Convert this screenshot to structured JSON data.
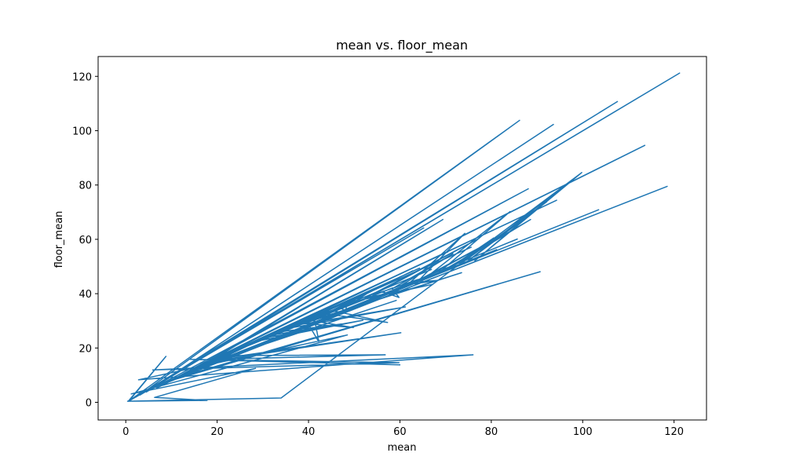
{
  "chart_data": {
    "type": "line",
    "title": "mean vs. floor_mean",
    "xlabel": "mean",
    "ylabel": "floor_mean",
    "xlim": [
      -6.05,
      127.1
    ],
    "ylim": [
      -6.5,
      127.3
    ],
    "xticks": [
      0,
      20,
      40,
      60,
      80,
      100,
      120
    ],
    "yticks": [
      0,
      20,
      40,
      60,
      80,
      100,
      120
    ],
    "grid": false,
    "series": [
      {
        "color": "#1f77b4",
        "x": [
          0.5,
          8.8,
          0.7,
          65.2,
          1.2,
          86.2,
          3.1,
          121.2,
          2.2,
          107.6,
          4.5,
          93.6,
          5.1,
          88.1,
          6.8,
          113.6,
          7.5,
          103.5,
          9.2,
          118.5,
          10.1,
          90.7,
          12.3,
          85.7,
          11.4,
          94.3,
          14.6,
          81.2,
          15.2,
          69.4,
          16.8,
          75.6,
          17.5,
          59.2,
          18.9,
          60.2,
          19.6,
          56.8,
          21.2,
          70.5,
          22.7,
          45.8,
          24.1,
          58.4,
          25.6,
          66.9,
          27.3,
          52.2,
          28.7,
          51.9,
          30.2,
          64.3,
          31.8,
          47.2,
          33.1,
          73.5,
          34.6,
          61.2,
          36.2,
          55.1,
          37.9,
          49.8,
          39.4,
          42.3,
          41.2,
          50.6,
          43.4,
          57.3,
          45.1,
          62.8,
          46.7,
          48.2,
          48.3,
          53.5,
          50.2,
          67.1,
          52.4,
          77.3,
          54.1,
          63.9,
          56.2,
          59.8,
          58.3,
          71.6,
          60.1,
          68.4,
          62.2,
          74.2,
          64.3,
          79.4,
          66.1,
          84.1,
          68.4,
          88.6,
          70.2,
          80.5,
          72.3,
          92.1,
          74.1,
          96.3,
          76.4,
          99.8,
          34.0,
          0.4,
          17.8,
          6.3,
          28.4,
          1.2,
          48.5,
          2.8,
          76.0,
          5.9,
          59.8,
          14.1,
          60.1
        ],
        "y": [
          0.3,
          16.9,
          0.5,
          64.2,
          1.1,
          103.8,
          2.7,
          121.2,
          1.9,
          110.7,
          3.8,
          102.3,
          4.4,
          78.6,
          5.3,
          94.6,
          6.2,
          70.9,
          7.4,
          79.5,
          8.1,
          48.1,
          9.6,
          60.1,
          8.9,
          74.4,
          11.2,
          56.2,
          12.1,
          67.3,
          13.4,
          57.1,
          14.2,
          37.5,
          15.1,
          25.6,
          15.8,
          17.5,
          17.2,
          55.4,
          18.1,
          33.6,
          19.2,
          42.1,
          20.3,
          48.9,
          21.4,
          37.8,
          22.5,
          30.2,
          23.6,
          49.4,
          24.7,
          28.8,
          25.8,
          47.7,
          26.9,
          35.1,
          28.1,
          39.9,
          29.2,
          27.5,
          30.4,
          22.1,
          31.5,
          37.2,
          32.7,
          29.4,
          33.8,
          48.4,
          34.9,
          33.7,
          36.1,
          40.8,
          37.2,
          43.4,
          38.4,
          60.3,
          39.5,
          45.2,
          40.7,
          38.6,
          41.8,
          54.7,
          42.9,
          44.9,
          44.1,
          62.2,
          45.2,
          58.7,
          46.4,
          70.2,
          47.5,
          67.3,
          48.7,
          60.5,
          49.8,
          73.8,
          51.0,
          80.2,
          52.1,
          84.6,
          1.6,
          0.4,
          0.7,
          1.8,
          12.5,
          3.1,
          24.8,
          8.3,
          17.5,
          11.9,
          14.6,
          15.8,
          13.8
        ]
      }
    ]
  }
}
